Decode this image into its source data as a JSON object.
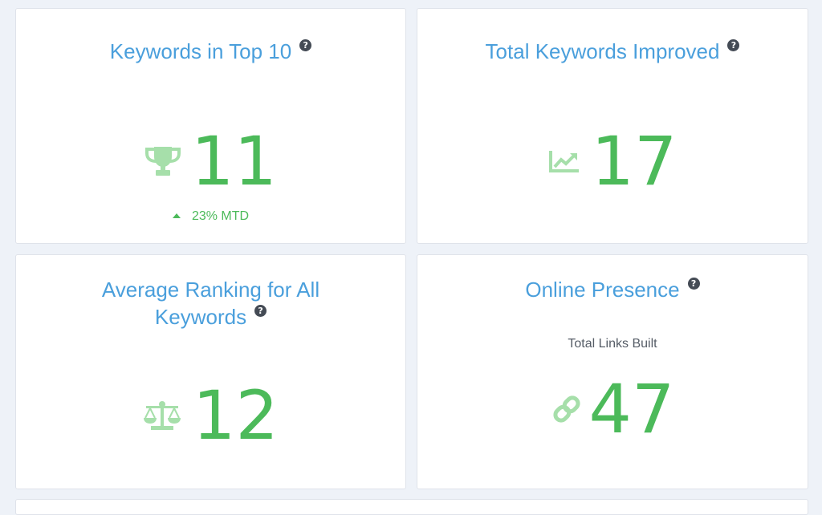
{
  "colors": {
    "title": "#4a9fdc",
    "value": "#4cba5a",
    "icon": "#a6dfaa",
    "help": "#444b55"
  },
  "cards": [
    {
      "title": "Keywords in Top 10",
      "help_icon": "?",
      "icon": "trophy-icon",
      "value": "11",
      "delta": "23% MTD"
    },
    {
      "title": "Total Keywords Improved",
      "help_icon": "?",
      "icon": "line-chart-icon",
      "value": "17"
    },
    {
      "title_line1": "Average Ranking for All",
      "title_line2": "Keywords",
      "help_icon": "?",
      "icon": "balance-scale-icon",
      "value": "12"
    },
    {
      "title": "Online Presence",
      "help_icon": "?",
      "subtitle": "Total Links Built",
      "icon": "link-icon",
      "value": "47"
    }
  ]
}
